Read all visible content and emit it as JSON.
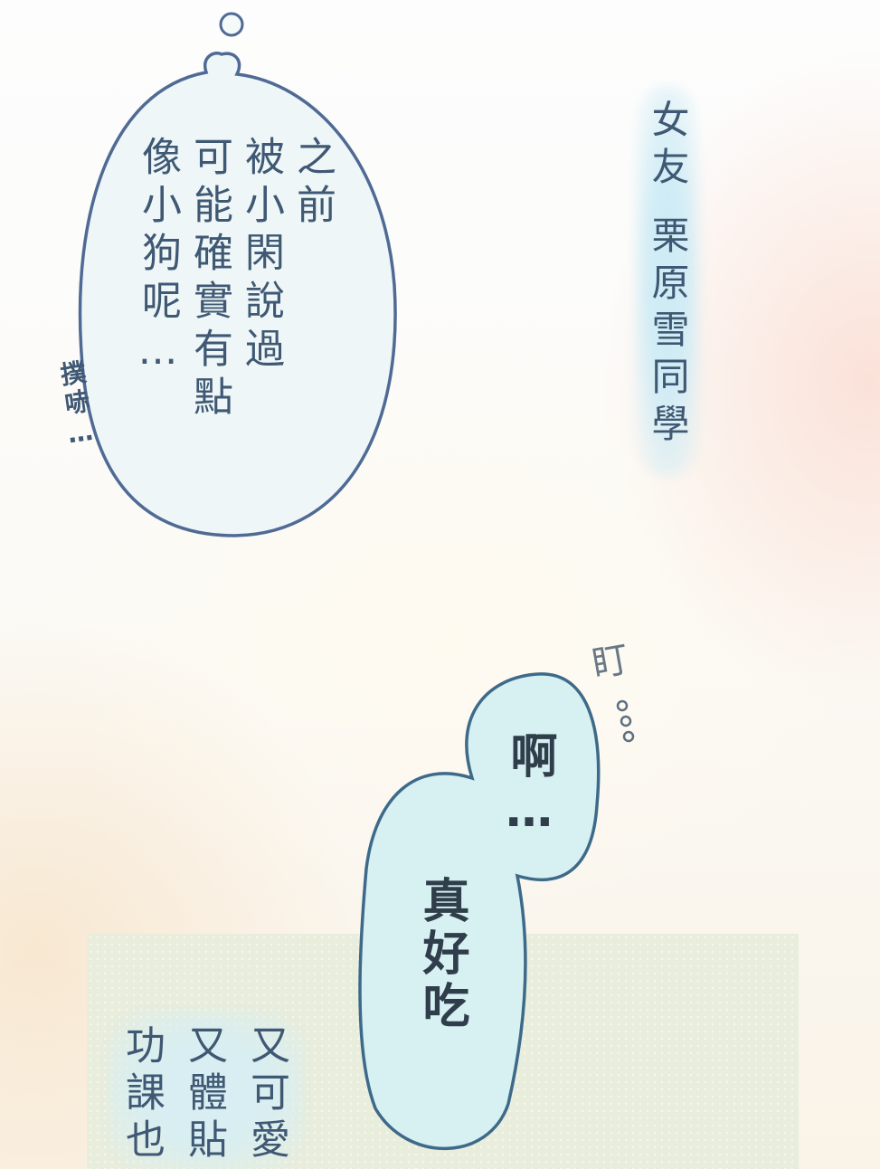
{
  "thought_bubble": {
    "columns": [
      "之前",
      "被小閑說過",
      "可能確實有點",
      "像小狗呢…"
    ],
    "sfx": "撲哧…"
  },
  "caption": {
    "line1": "女友",
    "line2": "栗原雪同學"
  },
  "speech_bubble": {
    "line1": "啊…",
    "line2": "真好吃",
    "sfx_stare": "盯",
    "sfx_dots": "…"
  },
  "panel": {
    "columns": [
      "又可愛",
      "又體貼",
      "功課也"
    ]
  },
  "colors": {
    "bubble_outline": "#4f6a94",
    "bubble_fill": "#eef6f7",
    "speech_outline": "#3e6a8a",
    "speech_fill": "#d7f0f2",
    "text": "#3f5873",
    "panel_bg": "#e8eddc"
  }
}
